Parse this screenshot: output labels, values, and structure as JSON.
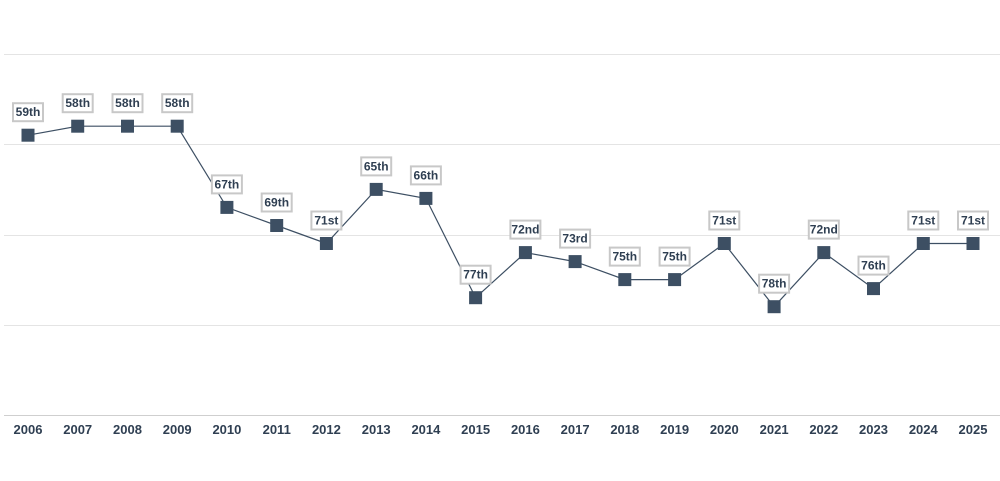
{
  "chart_data": {
    "type": "line",
    "title": "",
    "xlabel": "",
    "ylabel": "",
    "y_inverted": true,
    "ylim": [
      50,
      90
    ],
    "grid": true,
    "legend": "none",
    "marker_shape": "square",
    "colors": {
      "line": "#3d4f63",
      "marker": "#3d4f63",
      "label_border": "#c8c8c8",
      "text": "#2f3f52",
      "grid": "#e4e4e4"
    },
    "x": [
      "2006",
      "2007",
      "2008",
      "2009",
      "2010",
      "2011",
      "2012",
      "2013",
      "2014",
      "2015",
      "2016",
      "2017",
      "2018",
      "2019",
      "2020",
      "2021",
      "2022",
      "2023",
      "2024",
      "2025"
    ],
    "values": [
      59,
      58,
      58,
      58,
      67,
      69,
      71,
      65,
      66,
      77,
      72,
      73,
      75,
      75,
      71,
      78,
      72,
      76,
      71,
      71
    ],
    "labels": [
      "59th",
      "58th",
      "58th",
      "58th",
      "67th",
      "69th",
      "71st",
      "65th",
      "66th",
      "77th",
      "72nd",
      "73rd",
      "75th",
      "75th",
      "71st",
      "78th",
      "72nd",
      "76th",
      "71st",
      "71st"
    ]
  }
}
